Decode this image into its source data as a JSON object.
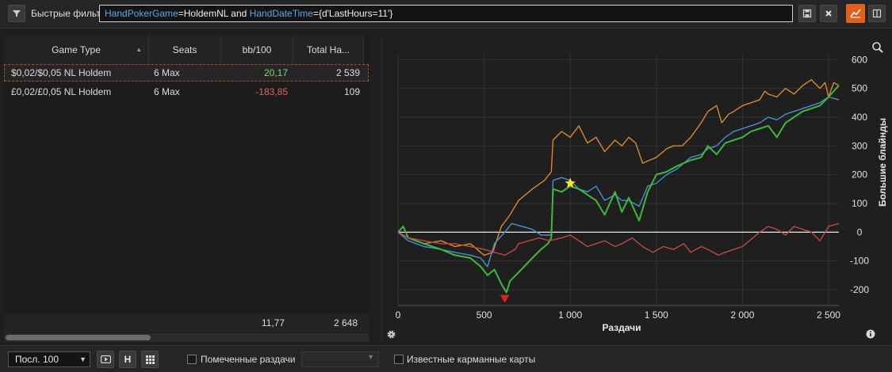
{
  "toolbar": {
    "filter_label": "Быстрые фильтры",
    "filter_query": {
      "field1": "HandPokerGame",
      "value1": "=HoldemNL and ",
      "field2": "HandDateTime",
      "value2": "={d'LastHours=11'}"
    }
  },
  "table": {
    "headers": [
      "Game Type",
      "Seats",
      "bb/100",
      "Total Ha..."
    ],
    "rows": [
      {
        "game_type": "$0,02/$0,05 NL Holdem",
        "seats": "6 Max",
        "bb100": "20,17",
        "total": "2 539",
        "bb_color": "#7fd37f"
      },
      {
        "game_type": "£0,02/£0,05 NL Holdem",
        "seats": "6 Max",
        "bb100": "-183,85",
        "total": "109",
        "bb_color": "#e06464"
      }
    ],
    "totals": {
      "bb100": "11,77",
      "total": "2 648"
    }
  },
  "chart_data": {
    "type": "line",
    "xlabel": "Раздачи",
    "ylabel": "Большие блайнды",
    "xlim": [
      0,
      2560
    ],
    "ylim": [
      -255,
      620
    ],
    "x_ticks": [
      0,
      500,
      1000,
      1500,
      2000,
      2500
    ],
    "x_tick_labels": [
      "0",
      "500",
      "1 000",
      "1 500",
      "2 000",
      "2 500"
    ],
    "y_ticks": [
      -200,
      -100,
      0,
      100,
      200,
      300,
      400,
      500,
      600
    ],
    "y_tick_labels": [
      "-200",
      "-100",
      "0",
      "100",
      "200",
      "300",
      "400",
      "500",
      "600"
    ],
    "grid": true,
    "series": [
      {
        "color": "#d98a2a",
        "x": [
          0,
          60,
          150,
          250,
          330,
          420,
          500,
          550,
          600,
          650,
          700,
          780,
          850,
          890,
          900,
          950,
          1000,
          1050,
          1100,
          1150,
          1200,
          1260,
          1300,
          1340,
          1380,
          1420,
          1460,
          1500,
          1560,
          1600,
          1650,
          1700,
          1760,
          1800,
          1850,
          1880,
          1920,
          1950,
          2000,
          2050,
          2100,
          2130,
          2150,
          2200,
          2250,
          2300,
          2350,
          2400,
          2450,
          2480,
          2500,
          2530,
          2560
        ],
        "y": [
          0,
          -20,
          -40,
          -30,
          -50,
          -40,
          -80,
          -70,
          20,
          60,
          110,
          150,
          180,
          210,
          320,
          350,
          330,
          370,
          310,
          330,
          280,
          320,
          300,
          330,
          310,
          240,
          250,
          260,
          290,
          300,
          300,
          330,
          380,
          420,
          440,
          380,
          410,
          420,
          440,
          450,
          460,
          490,
          480,
          470,
          500,
          480,
          510,
          530,
          500,
          520,
          470,
          520,
          510
        ]
      },
      {
        "color": "#4a8fd4",
        "x": [
          0,
          60,
          150,
          250,
          330,
          420,
          480,
          520,
          560,
          620,
          660,
          720,
          780,
          830,
          870,
          890,
          900,
          950,
          1000,
          1050,
          1100,
          1150,
          1200,
          1260,
          1300,
          1340,
          1400,
          1450,
          1500,
          1560,
          1620,
          1700,
          1760,
          1800,
          1850,
          1900,
          1950,
          2000,
          2050,
          2100,
          2150,
          2200,
          2250,
          2300,
          2350,
          2400,
          2450,
          2500,
          2560
        ],
        "y": [
          0,
          -30,
          -50,
          -60,
          -70,
          -80,
          -90,
          -120,
          -40,
          0,
          30,
          20,
          10,
          -10,
          -10,
          -10,
          180,
          190,
          180,
          150,
          140,
          160,
          110,
          130,
          110,
          110,
          90,
          160,
          170,
          200,
          220,
          260,
          270,
          290,
          300,
          330,
          350,
          360,
          370,
          380,
          400,
          390,
          410,
          420,
          430,
          440,
          450,
          470,
          460
        ]
      },
      {
        "color": "#3fb83f",
        "x": [
          0,
          30,
          60,
          150,
          250,
          330,
          420,
          480,
          520,
          560,
          600,
          630,
          650,
          700,
          780,
          830,
          870,
          890,
          900,
          950,
          1000,
          1050,
          1100,
          1150,
          1200,
          1260,
          1300,
          1340,
          1400,
          1450,
          1500,
          1560,
          1620,
          1700,
          1760,
          1800,
          1850,
          1900,
          1950,
          2000,
          2050,
          2100,
          2150,
          2200,
          2250,
          2300,
          2350,
          2400,
          2450,
          2500,
          2560
        ],
        "y": [
          0,
          20,
          -20,
          -40,
          -60,
          -80,
          -90,
          -120,
          -150,
          -130,
          -180,
          -210,
          -170,
          -140,
          -90,
          -60,
          -40,
          -20,
          150,
          140,
          160,
          150,
          130,
          110,
          60,
          140,
          70,
          120,
          40,
          140,
          200,
          210,
          230,
          250,
          260,
          300,
          270,
          310,
          320,
          330,
          350,
          360,
          370,
          330,
          380,
          400,
          420,
          430,
          440,
          470,
          510
        ]
      },
      {
        "color": "#c04848",
        "x": [
          0,
          60,
          150,
          250,
          330,
          420,
          500,
          560,
          620,
          680,
          700,
          760,
          820,
          880,
          950,
          1000,
          1050,
          1100,
          1150,
          1200,
          1260,
          1300,
          1360,
          1420,
          1480,
          1540,
          1600,
          1660,
          1700,
          1760,
          1800,
          1860,
          1900,
          1950,
          2000,
          2060,
          2100,
          2150,
          2200,
          2250,
          2300,
          2350,
          2400,
          2450,
          2500,
          2560
        ],
        "y": [
          0,
          -20,
          -30,
          -40,
          -40,
          -50,
          -60,
          -70,
          -80,
          -60,
          -40,
          -30,
          -20,
          -30,
          -20,
          -10,
          -30,
          -50,
          -40,
          -30,
          -50,
          -40,
          -20,
          -50,
          -70,
          -50,
          -60,
          -40,
          -70,
          -50,
          -60,
          -80,
          -70,
          -60,
          -50,
          -20,
          0,
          20,
          10,
          -10,
          20,
          10,
          0,
          -30,
          20,
          30
        ]
      }
    ],
    "markers": [
      {
        "shape": "star",
        "color": "#ffe52e",
        "x": 1000,
        "y": 170
      },
      {
        "shape": "triangle-down",
        "color": "#e02020",
        "x": 620,
        "y": -232
      }
    ]
  },
  "bottombar": {
    "period": "Посл. 100",
    "h_button": "H",
    "marked_hands": "Помеченные раздачи",
    "known_cards": "Известные карманные карты"
  },
  "icons": [
    "filter-icon",
    "save-icon",
    "clear-icon",
    "chart-icon",
    "layout-icon",
    "zoom-icon",
    "settings-icon",
    "info-icon",
    "preview-icon",
    "grid-icon"
  ]
}
